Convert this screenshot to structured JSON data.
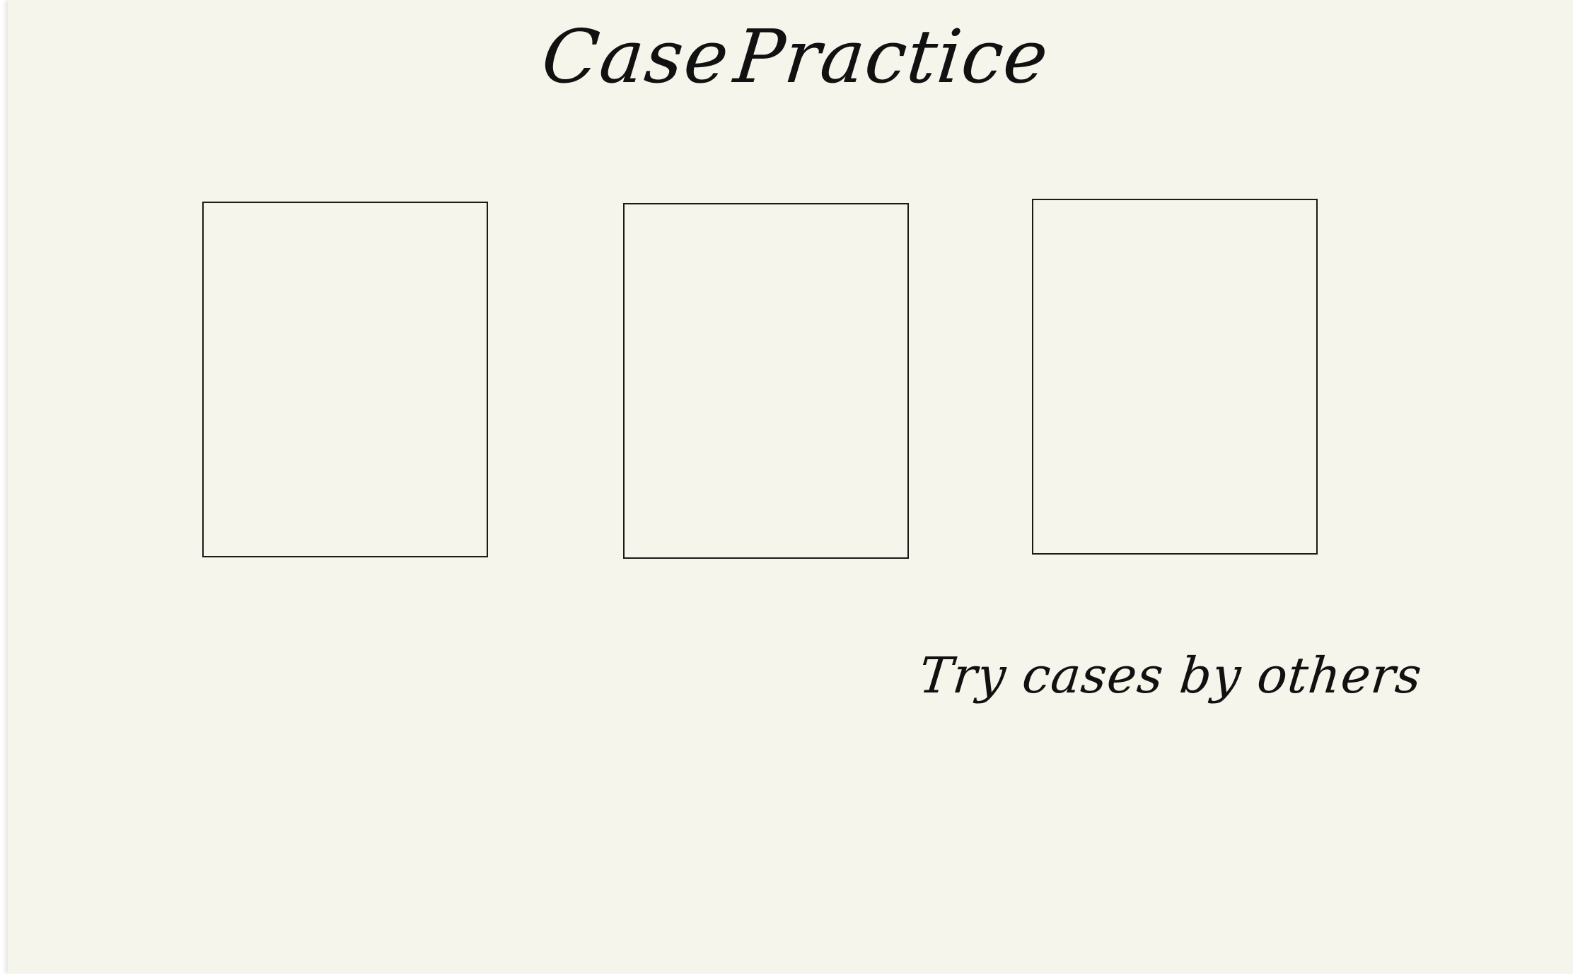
{
  "page": {
    "background_color": "#f5f5eb",
    "ink_color": "#111111"
  },
  "header": {
    "title_word_1": "Case",
    "title_word_2": "Practice"
  },
  "cards": [
    {
      "label": ""
    },
    {
      "label": ""
    },
    {
      "label": ""
    }
  ],
  "footer": {
    "link_text": "Try cases by others"
  }
}
